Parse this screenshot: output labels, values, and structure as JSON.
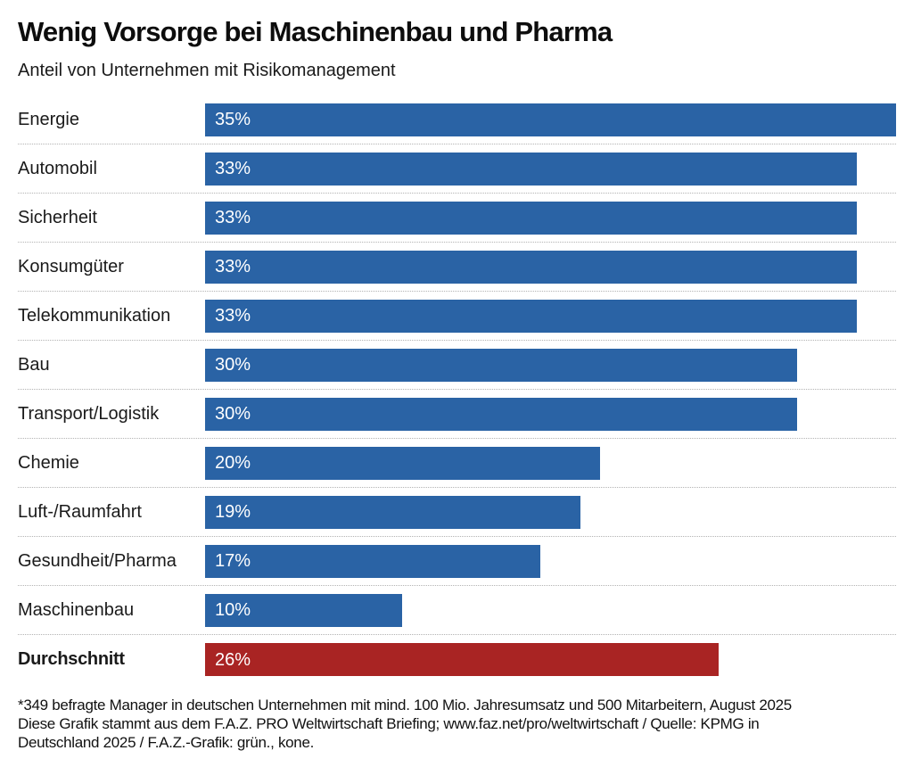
{
  "header": {
    "title": "Wenig Vorsorge bei Maschinenbau und Pharma",
    "subtitle": "Anteil von Unternehmen mit Risikomanagement"
  },
  "chart_data": {
    "type": "bar",
    "orientation": "horizontal",
    "unit": "%",
    "xlim": [
      0,
      35
    ],
    "grid": "dotted-row-separators",
    "legend": "none",
    "categories": [
      "Energie",
      "Automobil",
      "Sicherheit",
      "Konsumgüter",
      "Telekommunikation",
      "Bau",
      "Transport/Logistik",
      "Chemie",
      "Luft-/Raumfahrt",
      "Gesundheit/Pharma",
      "Maschinenbau",
      "Durchschnitt"
    ],
    "values": [
      35,
      33,
      33,
      33,
      33,
      30,
      30,
      20,
      19,
      17,
      10,
      26
    ],
    "rows": [
      {
        "label": "Energie",
        "value": 35,
        "display": "35%",
        "average": false
      },
      {
        "label": "Automobil",
        "value": 33,
        "display": "33%",
        "average": false
      },
      {
        "label": "Sicherheit",
        "value": 33,
        "display": "33%",
        "average": false
      },
      {
        "label": "Konsumgüter",
        "value": 33,
        "display": "33%",
        "average": false
      },
      {
        "label": "Telekommunikation",
        "value": 33,
        "display": "33%",
        "average": false
      },
      {
        "label": "Bau",
        "value": 30,
        "display": "30%",
        "average": false
      },
      {
        "label": "Transport/Logistik",
        "value": 30,
        "display": "30%",
        "average": false
      },
      {
        "label": "Chemie",
        "value": 20,
        "display": "20%",
        "average": false
      },
      {
        "label": "Luft-/Raumfahrt",
        "value": 19,
        "display": "19%",
        "average": false
      },
      {
        "label": "Gesundheit/Pharma",
        "value": 17,
        "display": "17%",
        "average": false
      },
      {
        "label": "Maschinenbau",
        "value": 10,
        "display": "10%",
        "average": false
      },
      {
        "label": "Durchschnitt",
        "value": 26,
        "display": "26%",
        "average": true
      }
    ],
    "colors": {
      "bar_default": "#2a63a5",
      "bar_average": "#a92423",
      "value_label": "#ffffff",
      "separator": "#b3b3b3"
    }
  },
  "footer": {
    "lines": [
      "*349 befragte Manager in deutschen Unternehmen mit mind. 100 Mio. Jahresumsatz und 500 Mitarbeitern, August 2025",
      "Diese Grafik stammt aus dem F.A.Z. PRO Weltwirtschaft Briefing; www.faz.net/pro/weltwirtschaft / Quelle: KPMG in",
      "Deutschland 2025 / F.A.Z.-Grafik: grün., kone."
    ]
  }
}
